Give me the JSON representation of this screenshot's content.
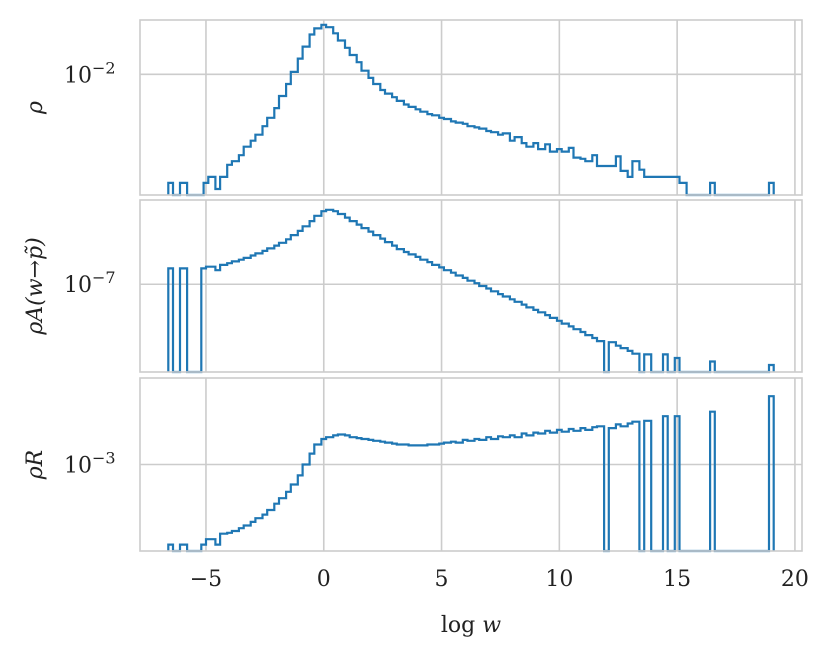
{
  "chart_data": {
    "type": "histogram",
    "xlabel": "log w",
    "xlim": [
      -7.8,
      20.3
    ],
    "x_ticks": [
      -5,
      0,
      5,
      10,
      15,
      20
    ],
    "x_tick_labels": [
      "−5",
      "0",
      "5",
      "10",
      "15",
      "20"
    ],
    "grid": true,
    "line_color": "#1f77b4",
    "grid_color": "#cccccc",
    "panels": [
      {
        "ylabel": "ρ",
        "y_scale": "log",
        "ylim_log10": [
          -3.0,
          -1.55
        ],
        "y_ticks_log10": [
          -2
        ],
        "y_tick_labels": [
          "10",
          "−2"
        ],
        "steps": [
          [
            -6.6,
            -2.9
          ],
          [
            -6.4,
            -10
          ],
          [
            -6.1,
            -2.9
          ],
          [
            -5.8,
            -10
          ],
          [
            -5.1,
            -2.9
          ],
          [
            -4.9,
            -2.85
          ],
          [
            -4.6,
            -2.95
          ],
          [
            -4.4,
            -2.85
          ],
          [
            -4.1,
            -2.75
          ],
          [
            -3.9,
            -2.72
          ],
          [
            -3.6,
            -2.67
          ],
          [
            -3.4,
            -2.6
          ],
          [
            -3.1,
            -2.55
          ],
          [
            -2.9,
            -2.5
          ],
          [
            -2.6,
            -2.43
          ],
          [
            -2.4,
            -2.36
          ],
          [
            -2.1,
            -2.28
          ],
          [
            -1.9,
            -2.18
          ],
          [
            -1.6,
            -2.08
          ],
          [
            -1.4,
            -1.98
          ],
          [
            -1.1,
            -1.87
          ],
          [
            -0.9,
            -1.77
          ],
          [
            -0.6,
            -1.67
          ],
          [
            -0.4,
            -1.62
          ],
          [
            -0.1,
            -1.59
          ],
          [
            0.1,
            -1.61
          ],
          [
            0.4,
            -1.66
          ],
          [
            0.6,
            -1.72
          ],
          [
            0.9,
            -1.78
          ],
          [
            1.1,
            -1.84
          ],
          [
            1.4,
            -1.9
          ],
          [
            1.6,
            -1.97
          ],
          [
            1.9,
            -2.03
          ],
          [
            2.1,
            -2.08
          ],
          [
            2.4,
            -2.13
          ],
          [
            2.6,
            -2.16
          ],
          [
            2.9,
            -2.19
          ],
          [
            3.1,
            -2.22
          ],
          [
            3.4,
            -2.25
          ],
          [
            3.6,
            -2.27
          ],
          [
            3.9,
            -2.29
          ],
          [
            4.1,
            -2.31
          ],
          [
            4.4,
            -2.33
          ],
          [
            4.6,
            -2.34
          ],
          [
            4.9,
            -2.36
          ],
          [
            5.1,
            -2.37
          ],
          [
            5.4,
            -2.39
          ],
          [
            5.6,
            -2.4
          ],
          [
            5.9,
            -2.41
          ],
          [
            6.1,
            -2.43
          ],
          [
            6.4,
            -2.44
          ],
          [
            6.6,
            -2.45
          ],
          [
            6.9,
            -2.47
          ],
          [
            7.1,
            -2.48
          ],
          [
            7.4,
            -2.5
          ],
          [
            7.6,
            -2.49
          ],
          [
            7.9,
            -2.55
          ],
          [
            8.1,
            -2.52
          ],
          [
            8.4,
            -2.57
          ],
          [
            8.6,
            -2.6
          ],
          [
            8.9,
            -2.57
          ],
          [
            9.1,
            -2.62
          ],
          [
            9.4,
            -2.58
          ],
          [
            9.6,
            -2.64
          ],
          [
            9.9,
            -2.62
          ],
          [
            10.1,
            -2.64
          ],
          [
            10.4,
            -2.61
          ],
          [
            10.6,
            -2.69
          ],
          [
            10.9,
            -2.7
          ],
          [
            11.1,
            -2.72
          ],
          [
            11.4,
            -2.67
          ],
          [
            11.6,
            -2.76
          ],
          [
            12.4,
            -2.68
          ],
          [
            12.6,
            -2.8
          ],
          [
            12.9,
            -2.85
          ],
          [
            13.1,
            -2.72
          ],
          [
            13.4,
            -2.79
          ],
          [
            13.6,
            -2.85
          ],
          [
            15.1,
            -2.9
          ],
          [
            15.4,
            -10
          ],
          [
            16.4,
            -2.9
          ],
          [
            16.6,
            -10
          ],
          [
            18.9,
            -2.9
          ],
          [
            19.1,
            -10
          ]
        ]
      },
      {
        "ylabel": "ρA(w→p̃)",
        "y_scale": "log",
        "ylim_log10": [
          -9.5,
          -4.6
        ],
        "y_ticks_log10": [
          -7
        ],
        "y_tick_labels": [
          "10",
          "−7"
        ],
        "steps": [
          [
            -6.6,
            -6.55
          ],
          [
            -6.4,
            -10
          ],
          [
            -6.1,
            -6.55
          ],
          [
            -5.8,
            -10
          ],
          [
            -5.2,
            -6.55
          ],
          [
            -5.0,
            -6.5
          ],
          [
            -4.6,
            -6.6
          ],
          [
            -4.4,
            -6.45
          ],
          [
            -4.1,
            -6.4
          ],
          [
            -3.9,
            -6.35
          ],
          [
            -3.6,
            -6.3
          ],
          [
            -3.4,
            -6.25
          ],
          [
            -3.1,
            -6.18
          ],
          [
            -2.9,
            -6.12
          ],
          [
            -2.6,
            -6.05
          ],
          [
            -2.4,
            -5.98
          ],
          [
            -2.1,
            -5.9
          ],
          [
            -1.9,
            -5.82
          ],
          [
            -1.6,
            -5.72
          ],
          [
            -1.4,
            -5.6
          ],
          [
            -1.1,
            -5.48
          ],
          [
            -0.9,
            -5.35
          ],
          [
            -0.6,
            -5.2
          ],
          [
            -0.4,
            -5.05
          ],
          [
            -0.1,
            -4.92
          ],
          [
            0.1,
            -4.88
          ],
          [
            0.4,
            -4.92
          ],
          [
            0.6,
            -5.0
          ],
          [
            0.9,
            -5.1
          ],
          [
            1.1,
            -5.2
          ],
          [
            1.4,
            -5.3
          ],
          [
            1.6,
            -5.4
          ],
          [
            1.9,
            -5.5
          ],
          [
            2.1,
            -5.6
          ],
          [
            2.4,
            -5.7
          ],
          [
            2.6,
            -5.8
          ],
          [
            2.9,
            -5.9
          ],
          [
            3.1,
            -6.0
          ],
          [
            3.4,
            -6.08
          ],
          [
            3.6,
            -6.15
          ],
          [
            3.9,
            -6.22
          ],
          [
            4.1,
            -6.3
          ],
          [
            4.4,
            -6.37
          ],
          [
            4.6,
            -6.45
          ],
          [
            4.9,
            -6.52
          ],
          [
            5.1,
            -6.6
          ],
          [
            5.4,
            -6.67
          ],
          [
            5.6,
            -6.75
          ],
          [
            5.9,
            -6.82
          ],
          [
            6.1,
            -6.9
          ],
          [
            6.4,
            -6.97
          ],
          [
            6.6,
            -7.05
          ],
          [
            6.9,
            -7.12
          ],
          [
            7.1,
            -7.2
          ],
          [
            7.4,
            -7.28
          ],
          [
            7.6,
            -7.35
          ],
          [
            7.9,
            -7.43
          ],
          [
            8.1,
            -7.5
          ],
          [
            8.4,
            -7.58
          ],
          [
            8.6,
            -7.66
          ],
          [
            8.9,
            -7.73
          ],
          [
            9.1,
            -7.8
          ],
          [
            9.4,
            -7.88
          ],
          [
            9.6,
            -7.96
          ],
          [
            9.9,
            -8.04
          ],
          [
            10.1,
            -8.12
          ],
          [
            10.4,
            -8.2
          ],
          [
            10.6,
            -8.28
          ],
          [
            10.9,
            -8.36
          ],
          [
            11.1,
            -8.45
          ],
          [
            11.4,
            -8.53
          ],
          [
            11.6,
            -8.62
          ],
          [
            11.9,
            -10
          ],
          [
            12.1,
            -8.65
          ],
          [
            12.4,
            -8.75
          ],
          [
            12.6,
            -8.82
          ],
          [
            12.9,
            -8.9
          ],
          [
            13.1,
            -8.98
          ],
          [
            13.4,
            -10
          ],
          [
            13.6,
            -9.0
          ],
          [
            13.9,
            -10
          ],
          [
            14.4,
            -9.0
          ],
          [
            14.6,
            -10
          ],
          [
            14.9,
            -9.1
          ],
          [
            15.1,
            -10
          ],
          [
            16.4,
            -9.2
          ],
          [
            16.6,
            -10
          ],
          [
            18.9,
            -9.3
          ],
          [
            19.1,
            -10
          ]
        ]
      },
      {
        "ylabel": "ρR",
        "y_scale": "log",
        "ylim_log10": [
          -3.95,
          -2.05
        ],
        "y_ticks_log10": [
          -3
        ],
        "y_tick_labels": [
          "10",
          "−3"
        ],
        "steps": [
          [
            -6.6,
            -3.88
          ],
          [
            -6.4,
            -10
          ],
          [
            -6.1,
            -3.88
          ],
          [
            -5.8,
            -10
          ],
          [
            -5.2,
            -3.88
          ],
          [
            -5.0,
            -3.82
          ],
          [
            -4.6,
            -3.88
          ],
          [
            -4.4,
            -3.76
          ],
          [
            -4.1,
            -3.75
          ],
          [
            -3.9,
            -3.73
          ],
          [
            -3.6,
            -3.7
          ],
          [
            -3.4,
            -3.67
          ],
          [
            -3.1,
            -3.63
          ],
          [
            -2.9,
            -3.59
          ],
          [
            -2.6,
            -3.55
          ],
          [
            -2.4,
            -3.5
          ],
          [
            -2.1,
            -3.43
          ],
          [
            -1.9,
            -3.37
          ],
          [
            -1.6,
            -3.3
          ],
          [
            -1.4,
            -3.22
          ],
          [
            -1.1,
            -3.12
          ],
          [
            -0.9,
            -3.0
          ],
          [
            -0.6,
            -2.88
          ],
          [
            -0.4,
            -2.78
          ],
          [
            -0.1,
            -2.72
          ],
          [
            0.1,
            -2.7
          ],
          [
            0.4,
            -2.68
          ],
          [
            0.6,
            -2.67
          ],
          [
            0.9,
            -2.68
          ],
          [
            1.1,
            -2.7
          ],
          [
            1.4,
            -2.71
          ],
          [
            1.6,
            -2.72
          ],
          [
            1.9,
            -2.73
          ],
          [
            2.1,
            -2.74
          ],
          [
            2.4,
            -2.75
          ],
          [
            2.6,
            -2.76
          ],
          [
            2.9,
            -2.77
          ],
          [
            3.1,
            -2.78
          ],
          [
            3.4,
            -2.78
          ],
          [
            3.6,
            -2.79
          ],
          [
            3.9,
            -2.79
          ],
          [
            4.1,
            -2.79
          ],
          [
            4.4,
            -2.78
          ],
          [
            4.6,
            -2.78
          ],
          [
            4.9,
            -2.77
          ],
          [
            5.1,
            -2.76
          ],
          [
            5.4,
            -2.75
          ],
          [
            5.6,
            -2.76
          ],
          [
            5.9,
            -2.73
          ],
          [
            6.1,
            -2.74
          ],
          [
            6.4,
            -2.72
          ],
          [
            6.6,
            -2.73
          ],
          [
            6.9,
            -2.7
          ],
          [
            7.1,
            -2.72
          ],
          [
            7.4,
            -2.69
          ],
          [
            7.6,
            -2.7
          ],
          [
            7.9,
            -2.68
          ],
          [
            8.1,
            -2.7
          ],
          [
            8.4,
            -2.66
          ],
          [
            8.6,
            -2.68
          ],
          [
            8.9,
            -2.65
          ],
          [
            9.1,
            -2.66
          ],
          [
            9.4,
            -2.63
          ],
          [
            9.6,
            -2.65
          ],
          [
            9.9,
            -2.62
          ],
          [
            10.1,
            -2.64
          ],
          [
            10.4,
            -2.61
          ],
          [
            10.6,
            -2.63
          ],
          [
            10.9,
            -2.6
          ],
          [
            11.1,
            -2.62
          ],
          [
            11.4,
            -2.59
          ],
          [
            11.6,
            -2.58
          ],
          [
            11.9,
            -10
          ],
          [
            12.1,
            -2.6
          ],
          [
            12.4,
            -2.56
          ],
          [
            12.6,
            -2.58
          ],
          [
            12.9,
            -2.55
          ],
          [
            13.1,
            -2.53
          ],
          [
            13.4,
            -10
          ],
          [
            13.6,
            -2.52
          ],
          [
            13.9,
            -10
          ],
          [
            14.4,
            -2.47
          ],
          [
            14.6,
            -10
          ],
          [
            14.9,
            -2.47
          ],
          [
            15.1,
            -10
          ],
          [
            16.4,
            -2.42
          ],
          [
            16.6,
            -10
          ],
          [
            18.9,
            -2.25
          ],
          [
            19.1,
            -10
          ]
        ]
      }
    ]
  }
}
